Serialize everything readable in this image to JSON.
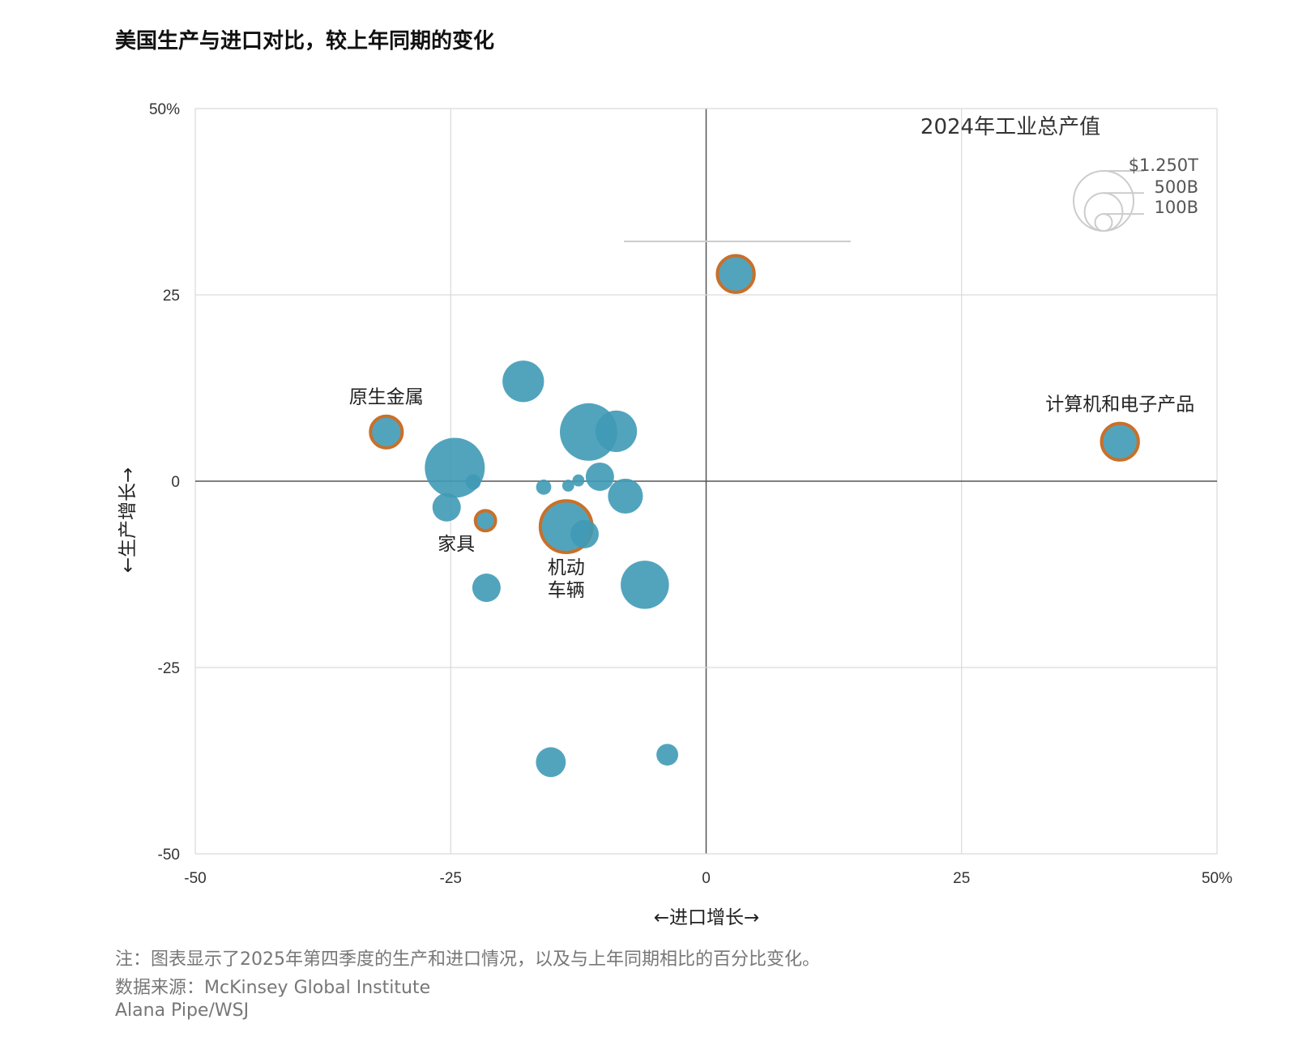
{
  "chart_data": {
    "type": "scatter",
    "title": "美国生产与进口对比，较上年同期的变化",
    "xlabel": "←进口增长→",
    "ylabel": "←生产增长→",
    "xlim": [
      -50,
      50
    ],
    "ylim": [
      -50,
      50
    ],
    "x_ticks": [
      "-50",
      "-25",
      "0",
      "25",
      "50%"
    ],
    "y_ticks": [
      "50%",
      "25",
      "0",
      "-25",
      "-50"
    ],
    "grid": true,
    "size_legend": {
      "title": "2024年工业总产值",
      "entries": [
        {
          "label": "$1.250T",
          "value": 1250
        },
        {
          "label": "500B",
          "value": 500
        },
        {
          "label": "100B",
          "value": 100
        }
      ],
      "placement": "top-right"
    },
    "colors": {
      "bubble": "#3f9ab6",
      "highlight_outline": "#c8702a"
    },
    "points": [
      {
        "x": 2.9,
        "y": 27.8,
        "size": 555,
        "highlight": true
      },
      {
        "x": 40.5,
        "y": 5.3,
        "size": 555,
        "highlight": true,
        "label": "计算机和电子产品"
      },
      {
        "x": -31.3,
        "y": 6.6,
        "size": 425,
        "highlight": true,
        "label": "原生金属"
      },
      {
        "x": -17.9,
        "y": 13.4,
        "size": 600
      },
      {
        "x": -11.5,
        "y": 6.6,
        "size": 1150
      },
      {
        "x": -8.8,
        "y": 6.7,
        "size": 600
      },
      {
        "x": -24.6,
        "y": 1.8,
        "size": 1250
      },
      {
        "x": -22.8,
        "y": -0.1,
        "size": 80
      },
      {
        "x": -25.4,
        "y": -3.5,
        "size": 280
      },
      {
        "x": -21.6,
        "y": -5.3,
        "size": 190,
        "highlight": true,
        "label": "家具"
      },
      {
        "x": -15.9,
        "y": -0.8,
        "size": 80
      },
      {
        "x": -13.5,
        "y": -0.6,
        "size": 50
      },
      {
        "x": -12.5,
        "y": 0.1,
        "size": 50
      },
      {
        "x": -10.4,
        "y": 0.6,
        "size": 280
      },
      {
        "x": -7.9,
        "y": -2.0,
        "size": 425
      },
      {
        "x": -13.7,
        "y": -6.1,
        "size": 1050,
        "highlight": true,
        "label": "机动\n车辆"
      },
      {
        "x": -11.9,
        "y": -7.1,
        "size": 280
      },
      {
        "x": -21.5,
        "y": -14.3,
        "size": 280
      },
      {
        "x": -6.0,
        "y": -13.9,
        "size": 810
      },
      {
        "x": -15.2,
        "y": -37.7,
        "size": 310
      },
      {
        "x": -3.8,
        "y": -36.7,
        "size": 165
      }
    ]
  },
  "notes": {
    "note": "注：图表显示了2025年第四季度的生产和进口情况，以及与上年同期相比的百分比变化。",
    "source": "数据来源：McKinsey Global Institute",
    "credit": "Alana Pipe/WSJ"
  }
}
